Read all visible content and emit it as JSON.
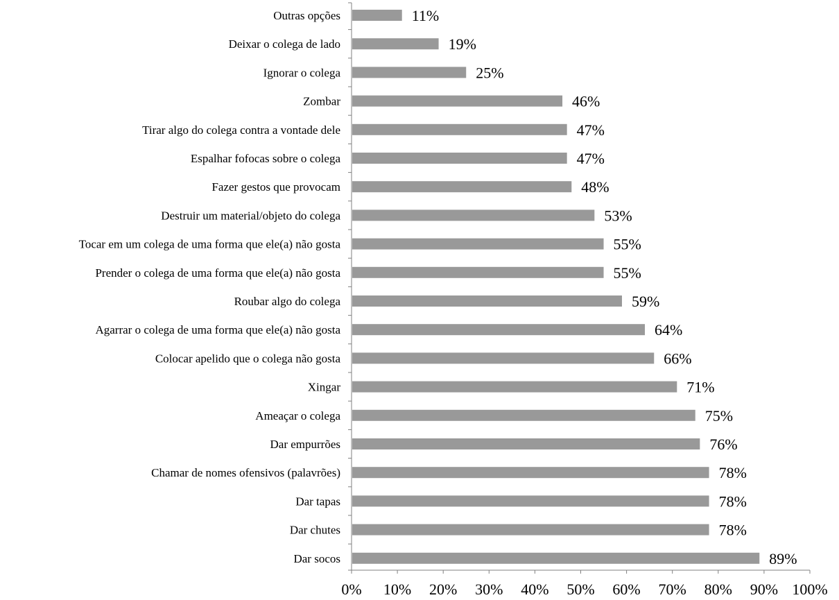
{
  "chart_data": {
    "type": "bar",
    "orientation": "horizontal",
    "categories": [
      "Outras opções",
      "Deixar o colega de lado",
      "Ignorar o colega",
      "Zombar",
      "Tirar algo do colega contra a vontade dele",
      "Espalhar fofocas sobre o colega",
      "Fazer gestos que provocam",
      "Destruir um material/objeto do colega",
      "Tocar em um colega de uma forma que ele(a) não gosta",
      "Prender o colega de uma forma que ele(a) não gosta",
      "Roubar algo do colega",
      "Agarrar o colega de uma forma que ele(a) não gosta",
      "Colocar apelido que o colega não gosta",
      "Xingar",
      "Ameaçar o colega",
      "Dar empurrões",
      "Chamar de nomes ofensivos (palavrões)",
      "Dar tapas",
      "Dar chutes",
      "Dar socos"
    ],
    "values": [
      11,
      19,
      25,
      46,
      47,
      47,
      48,
      53,
      55,
      55,
      59,
      64,
      66,
      71,
      75,
      76,
      78,
      78,
      78,
      89
    ],
    "value_labels": [
      "11%",
      "19%",
      "25%",
      "46%",
      "47%",
      "47%",
      "48%",
      "53%",
      "55%",
      "55%",
      "59%",
      "64%",
      "66%",
      "71%",
      "75%",
      "76%",
      "78%",
      "78%",
      "78%",
      "89%"
    ],
    "x_ticks": [
      "0%",
      "10%",
      "20%",
      "30%",
      "40%",
      "50%",
      "60%",
      "70%",
      "80%",
      "90%",
      "100%"
    ],
    "xlim": [
      0,
      100
    ],
    "title": "",
    "xlabel": "",
    "ylabel": "",
    "grid": false,
    "legend": "none",
    "bar_color": "#999999"
  }
}
